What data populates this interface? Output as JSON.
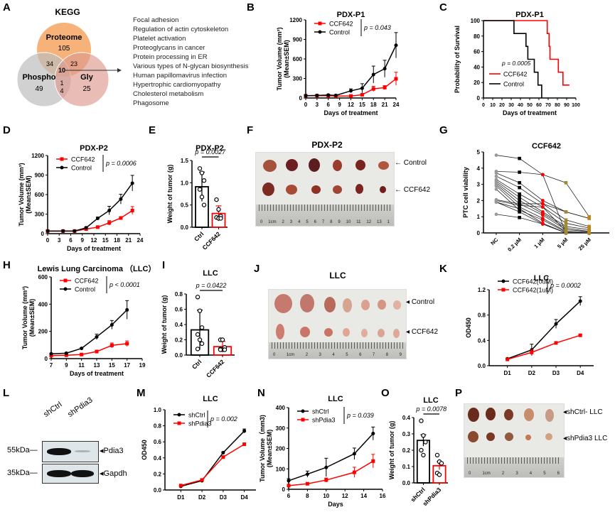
{
  "figure": {
    "panels": {
      "A": {
        "letter": "A",
        "title": "KEGG",
        "venn": {
          "sets": [
            {
              "name": "Proteome",
              "value": "105",
              "color": "#f4a460"
            },
            {
              "name": "Phospho",
              "value": "49",
              "color": "#c8c8c8"
            },
            {
              "name": "Gly",
              "value": "25",
              "color": "#e4a99f"
            }
          ],
          "intersections": {
            "proteome_phospho": "34",
            "proteome_gly": "23",
            "all": "10",
            "phospho_gly_a": "1",
            "phospho_gly_b": "4"
          }
        },
        "pathways": [
          "Focal adhesion",
          "Regulation of actin cytoskeleton",
          "Platelet activation",
          "Proteoglycans in cancer",
          "Protein processing in ER",
          "Various types of N-glycan biosynthesis",
          "Human papillomavirus infection",
          "Hypertrophic cardiomyopathy",
          "Cholesterol metabolism",
          "Phagosome"
        ]
      },
      "B": {
        "letter": "B"
      },
      "C": {
        "letter": "C"
      },
      "D": {
        "letter": "D"
      },
      "E": {
        "letter": "E"
      },
      "F": {
        "letter": "F",
        "title": "PDX-P2",
        "labels": [
          "Control",
          "CCF642"
        ],
        "ruler": [
          "0",
          "1cm",
          "2",
          "3",
          "4",
          "5",
          "6",
          "7",
          "8",
          "9",
          "10",
          "11",
          "12",
          "13",
          "1"
        ]
      },
      "G": {
        "letter": "G"
      },
      "H": {
        "letter": "H"
      },
      "I": {
        "letter": "I"
      },
      "J": {
        "letter": "J",
        "title": "LLC",
        "labels": [
          "Control",
          "CCF642"
        ],
        "ruler": [
          "0",
          "1cm",
          "2",
          "3",
          "4",
          "5",
          "6",
          "7",
          "8",
          "9"
        ]
      },
      "K": {
        "letter": "K"
      },
      "L": {
        "letter": "L",
        "lanes": [
          "shCtrl",
          "shPdia3"
        ],
        "markers": [
          "55kDa",
          "35kDa"
        ],
        "targets": [
          "Pdia3",
          "Gapdh"
        ]
      },
      "M": {
        "letter": "M"
      },
      "N": {
        "letter": "N"
      },
      "O": {
        "letter": "O"
      },
      "P": {
        "letter": "P",
        "labels": [
          "shCtrl- LLC",
          "shPdia3 LLC"
        ],
        "ruler": [
          "0",
          "1cm",
          "2",
          "3",
          "4",
          "5",
          "6"
        ]
      }
    }
  },
  "chart_data": [
    {
      "id": "B",
      "type": "line",
      "title": "PDX-P1",
      "xlabel": "Days of treatment",
      "ylabel": "Tumor Volume (mm³)",
      "ylabel2": "(Mean±SEM)",
      "xlim": [
        0,
        24
      ],
      "xticks": [
        0,
        3,
        6,
        9,
        12,
        15,
        18,
        21,
        24
      ],
      "ylim": [
        0,
        1200
      ],
      "yticks": [
        0,
        300,
        600,
        900,
        1200
      ],
      "annotation": "p = 0.043",
      "legend": "top-left",
      "series": [
        {
          "name": "CCF642",
          "color": "#ff0000",
          "marker": "square",
          "x": [
            0,
            3,
            6,
            8,
            12,
            15,
            18,
            21,
            24
          ],
          "y": [
            35,
            35,
            35,
            30,
            30,
            50,
            140,
            160,
            295
          ],
          "err": [
            10,
            10,
            10,
            10,
            10,
            15,
            40,
            30,
            100
          ]
        },
        {
          "name": "Control",
          "color": "#000000",
          "marker": "circle",
          "x": [
            0,
            3,
            6,
            8,
            12,
            15,
            18,
            21,
            24
          ],
          "y": [
            35,
            40,
            45,
            40,
            110,
            150,
            360,
            450,
            810
          ],
          "err": [
            10,
            10,
            10,
            10,
            30,
            70,
            130,
            130,
            195
          ]
        }
      ]
    },
    {
      "id": "C",
      "type": "line",
      "title": "PDX-P1",
      "xlabel": "Days of treatment",
      "ylabel": "Probability of Survival",
      "xlim": [
        0,
        100
      ],
      "xticks": [
        0,
        10,
        20,
        30,
        40,
        50,
        60,
        70,
        80,
        90,
        100
      ],
      "ylim": [
        0,
        100
      ],
      "yticks": [
        0,
        20,
        40,
        60,
        80,
        100
      ],
      "annotation": "p = 0.0005",
      "legend": "center-left",
      "series": [
        {
          "name": "CCF642",
          "color": "#ff0000",
          "step": true,
          "x": [
            0,
            69,
            71,
            72,
            81,
            86,
            93
          ],
          "y": [
            100,
            83.3,
            66.7,
            50,
            33.3,
            16.7,
            16.7
          ]
        },
        {
          "name": "Control",
          "color": "#000000",
          "step": true,
          "x": [
            0,
            33,
            46,
            48,
            55,
            59,
            63
          ],
          "y": [
            100,
            83.3,
            66.7,
            50,
            33.3,
            16.7,
            0
          ]
        }
      ]
    },
    {
      "id": "D",
      "type": "line",
      "title": "PDX-P2",
      "xlabel": "Days of treatment",
      "ylabel": "Tumor Volume (mm³)",
      "ylabel2": "(Mean±SEM)",
      "xlim": [
        0,
        24
      ],
      "xticks": [
        0,
        3,
        6,
        9,
        12,
        15,
        18,
        21,
        24
      ],
      "ylim": [
        0,
        1200
      ],
      "yticks": [
        0,
        300,
        600,
        900,
        1200
      ],
      "annotation": "p = 0.0006",
      "legend": "top-left",
      "series": [
        {
          "name": "CCF642",
          "color": "#ff0000",
          "marker": "square",
          "x": [
            0,
            4,
            7,
            10,
            13,
            16,
            19,
            22
          ],
          "y": [
            40,
            40,
            40,
            70,
            100,
            165,
            240,
            355
          ],
          "err": [
            10,
            10,
            10,
            15,
            15,
            35,
            20,
            60
          ]
        },
        {
          "name": "Control",
          "color": "#000000",
          "marker": "circle",
          "x": [
            0,
            4,
            7,
            10,
            13,
            16,
            19,
            22
          ],
          "y": [
            40,
            40,
            40,
            90,
            235,
            355,
            530,
            775
          ],
          "err": [
            10,
            10,
            10,
            15,
            20,
            65,
            75,
            120
          ]
        }
      ]
    },
    {
      "id": "E",
      "type": "bar",
      "title": "PDX-P2",
      "ylabel": "Weight of tumor (g)",
      "categories": [
        "Ctrl",
        "CCF642"
      ],
      "ylim": [
        0,
        1.5
      ],
      "yticks": [
        0.0,
        0.5,
        1.0,
        1.5
      ],
      "annotation": "p = 0.0027",
      "values": [
        0.91,
        0.31
      ],
      "sd": [
        0.33,
        0.17
      ],
      "colors": [
        "#000000",
        "#ff0000"
      ],
      "points": [
        [
          1.32,
          1.22,
          1.05,
          0.85,
          0.68,
          0.5
        ],
        [
          0.62,
          0.4,
          0.25,
          0.22,
          0.2,
          0.2
        ]
      ]
    },
    {
      "id": "G",
      "type": "line",
      "title": "CCF642",
      "ylabel": "PTC cell viability",
      "categories": [
        "NC",
        "0.2 μM",
        "1 μM",
        "5 μM",
        "25 μM"
      ],
      "ylim": [
        0,
        5
      ],
      "yticks": [
        0,
        1,
        2,
        3,
        4,
        5
      ],
      "colors": [
        "#999999",
        "#000000",
        "#ff0000",
        "#a08a30",
        "#b8861b"
      ],
      "series": [
        [
          4.8,
          4.6,
          3.6,
          3.1,
          1.0
        ],
        [
          3.8,
          3.75,
          3.6,
          0.0,
          0.0
        ],
        [
          3.7,
          3.1,
          2.0,
          1.3,
          0.9
        ],
        [
          3.5,
          2.8,
          1.8,
          0.8,
          0.4
        ],
        [
          3.3,
          2.4,
          1.6,
          0.6,
          0.3
        ],
        [
          3.2,
          2.2,
          1.3,
          0.4,
          0.2
        ],
        [
          3.1,
          2.0,
          1.2,
          0.3,
          0.1
        ],
        [
          3.0,
          1.8,
          1.1,
          0.2,
          0.1
        ],
        [
          2.9,
          1.6,
          0.9,
          0.1,
          0.05
        ],
        [
          2.7,
          1.4,
          0.8,
          0.05,
          0.0
        ],
        [
          2.05,
          1.8,
          1.8,
          1.3,
          0.9
        ],
        [
          2.0,
          1.7,
          1.6,
          0.1,
          0.05
        ],
        [
          1.9,
          1.5,
          0.6,
          0.0,
          0.0
        ],
        [
          1.9,
          1.3,
          0.55,
          0.0,
          0.0
        ],
        [
          1.15,
          0.95,
          0.55,
          0.0,
          0.0
        ]
      ]
    },
    {
      "id": "H",
      "type": "line",
      "title": "Lewis Lung Carcinoma （LLC）",
      "xlabel": "Days of treatment",
      "ylabel": "Tumor Volume (mm³)",
      "ylabel2": "(Mean±SEM)",
      "xlim": [
        7,
        19
      ],
      "xticks": [
        7,
        9,
        11,
        13,
        15,
        17,
        19
      ],
      "ylim": [
        0,
        600
      ],
      "yticks": [
        0,
        200,
        400,
        600
      ],
      "annotation": "p < 0.0001",
      "legend": "top-left",
      "series": [
        {
          "name": "CCF642",
          "color": "#ff0000",
          "marker": "square",
          "x": [
            7,
            9,
            11,
            13,
            15,
            17
          ],
          "y": [
            22,
            25,
            30,
            52,
            97,
            110
          ],
          "err": [
            5,
            5,
            5,
            10,
            18,
            20
          ]
        },
        {
          "name": "Control",
          "color": "#000000",
          "marker": "circle",
          "x": [
            7,
            9,
            11,
            13,
            15,
            17
          ],
          "y": [
            35,
            40,
            75,
            160,
            248,
            358
          ],
          "err": [
            5,
            5,
            5,
            20,
            32,
            68
          ]
        }
      ]
    },
    {
      "id": "I",
      "type": "bar",
      "title": "LLC",
      "ylabel": "Weight of tumor (g)",
      "categories": [
        "Ctrl",
        "CCF642"
      ],
      "ylim": [
        0,
        0.8
      ],
      "yticks": [
        0.0,
        0.2,
        0.4,
        0.6,
        0.8
      ],
      "annotation": "p = 0.0422",
      "values": [
        0.33,
        0.11
      ],
      "sd": [
        0.26,
        0.07
      ],
      "colors": [
        "#000000",
        "#ff0000"
      ],
      "points": [
        [
          0.76,
          0.58,
          0.36,
          0.27,
          0.2,
          0.15,
          0.08
        ],
        [
          0.2,
          0.2,
          0.1,
          0.08,
          0.07,
          0.07,
          0.07
        ]
      ]
    },
    {
      "id": "K",
      "type": "line",
      "title": "LLC",
      "ylabel": "OD450",
      "categories": [
        "D1",
        "D2",
        "D3",
        "D4"
      ],
      "ylim": [
        0,
        1.2
      ],
      "yticks": [
        0.0,
        0.4,
        0.8,
        1.2
      ],
      "annotation": "p = 0.0002",
      "legend": "top-left",
      "series": [
        {
          "name": "CCF642(0uM)",
          "color": "#000000",
          "marker": "circle",
          "y": [
            0.11,
            0.25,
            0.66,
            1.02
          ],
          "err": [
            0.01,
            0.09,
            0.07,
            0.07
          ]
        },
        {
          "name": "CCF642(1uM)",
          "color": "#ff0000",
          "marker": "square",
          "y": [
            0.1,
            0.21,
            0.36,
            0.48
          ],
          "err": [
            0.01,
            0.04,
            0.01,
            0.01
          ]
        }
      ]
    },
    {
      "id": "M",
      "type": "line",
      "title": "LLC",
      "ylabel": "OD450",
      "categories": [
        "D1",
        "D2",
        "D3",
        "D4"
      ],
      "ylim": [
        0,
        1.0
      ],
      "yticks": [
        0.0,
        0.2,
        0.4,
        0.6,
        0.8,
        1.0
      ],
      "annotation": "p = 0.002",
      "legend": "top-left",
      "series": [
        {
          "name": "shCtrl",
          "color": "#000000",
          "marker": "circle",
          "y": [
            0.045,
            0.115,
            0.465,
            0.735
          ],
          "err": [
            0.005,
            0.01,
            0.01,
            0.025
          ]
        },
        {
          "name": "shPdia3",
          "color": "#ff0000",
          "marker": "square",
          "y": [
            0.055,
            0.125,
            0.41,
            0.57
          ],
          "err": [
            0.005,
            0.01,
            0.01,
            0.015
          ]
        }
      ]
    },
    {
      "id": "N",
      "type": "line",
      "title": "LLC",
      "xlabel": "Days",
      "ylabel": "Tumor Volume（mm3)",
      "ylabel2": "(Mean±SEM)",
      "xlim": [
        6,
        16
      ],
      "xticks": [
        6,
        8,
        10,
        12,
        14,
        16
      ],
      "ylim": [
        0,
        400
      ],
      "yticks": [
        0,
        100,
        200,
        300,
        400
      ],
      "annotation": "p = 0.039",
      "legend": "top-left",
      "series": [
        {
          "name": "shCtrl",
          "color": "#000000",
          "marker": "circle",
          "x": [
            6,
            8,
            10,
            13,
            15
          ],
          "y": [
            42,
            74,
            107,
            174,
            273
          ],
          "err": [
            10,
            15,
            45,
            28,
            32
          ]
        },
        {
          "name": "shPdia3",
          "color": "#ff0000",
          "marker": "square",
          "x": [
            6,
            8,
            10,
            13,
            15
          ],
          "y": [
            18,
            27,
            45,
            83,
            138
          ],
          "err": [
            5,
            5,
            10,
            25,
            33
          ]
        }
      ]
    },
    {
      "id": "O",
      "type": "bar",
      "title": "LLC",
      "ylabel": "Weight of tumor (g)",
      "categories": [
        "shCtrl",
        "shPdia3"
      ],
      "ylim": [
        0,
        0.4
      ],
      "yticks": [
        0.0,
        0.1,
        0.2,
        0.3,
        0.4
      ],
      "annotation": "p = 0.0078",
      "values": [
        0.26,
        0.105
      ],
      "sd": [
        0.035,
        0.025
      ],
      "colors": [
        "#000000",
        "#ff0000"
      ],
      "points": [
        [
          0.38,
          0.29,
          0.25,
          0.2,
          0.17
        ],
        [
          0.17,
          0.13,
          0.12,
          0.06,
          0.05
        ]
      ]
    }
  ]
}
